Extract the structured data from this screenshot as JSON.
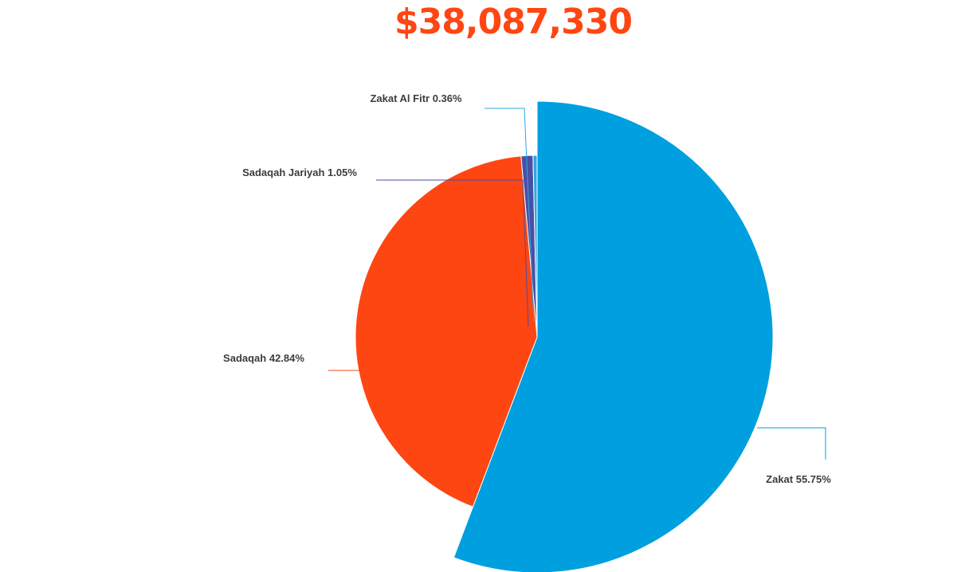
{
  "header": {
    "total": "$38,087,330"
  },
  "chart_data": {
    "type": "pie",
    "title": "$38,087,330",
    "slices": [
      {
        "name": "Zakat",
        "value": 55.75,
        "label": "Zakat 55.75%",
        "color": "#009fdf"
      },
      {
        "name": "Sadaqah",
        "value": 42.84,
        "label": "Sadaqah 42.84%",
        "color": "#fe4612"
      },
      {
        "name": "Sadaqah Jariyah",
        "value": 1.05,
        "label": "Sadaqah Jariyah 1.05%",
        "color": "#4a4fa6"
      },
      {
        "name": "Zakat Al Fitr",
        "value": 0.36,
        "label": "Zakat Al Fitr 0.36%",
        "color": "#29a9e0"
      }
    ],
    "emphasized_slice": "Zakat",
    "label_leaders": true
  }
}
